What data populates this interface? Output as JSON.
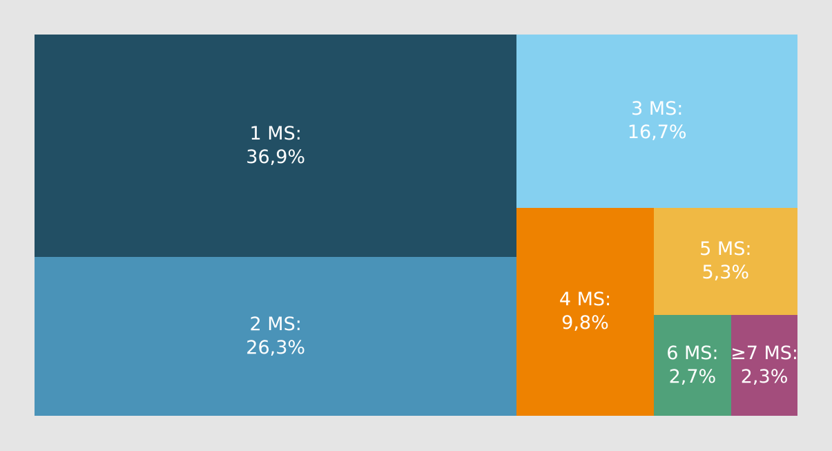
{
  "chart_data": {
    "type": "treemap",
    "title": "",
    "unit": "%",
    "items": [
      {
        "label": "1 MS:",
        "value_text": "36,9%",
        "value": 36.9,
        "color": "#224f64"
      },
      {
        "label": "2 MS:",
        "value_text": "26,3%",
        "value": 26.3,
        "color": "#4a93b8"
      },
      {
        "label": "3 MS:",
        "value_text": "16,7%",
        "value": 16.7,
        "color": "#85d0f0"
      },
      {
        "label": "4 MS:",
        "value_text": "9,8%",
        "value": 9.8,
        "color": "#ee8200"
      },
      {
        "label": "5 MS:",
        "value_text": "5,3%",
        "value": 5.3,
        "color": "#f0b944"
      },
      {
        "label": "6 MS:",
        "value_text": "2,7%",
        "value": 2.7,
        "color": "#50a17a"
      },
      {
        "label": "≥7 MS:",
        "value_text": "2,3%",
        "value": 2.3,
        "color": "#a34d7c"
      }
    ]
  }
}
